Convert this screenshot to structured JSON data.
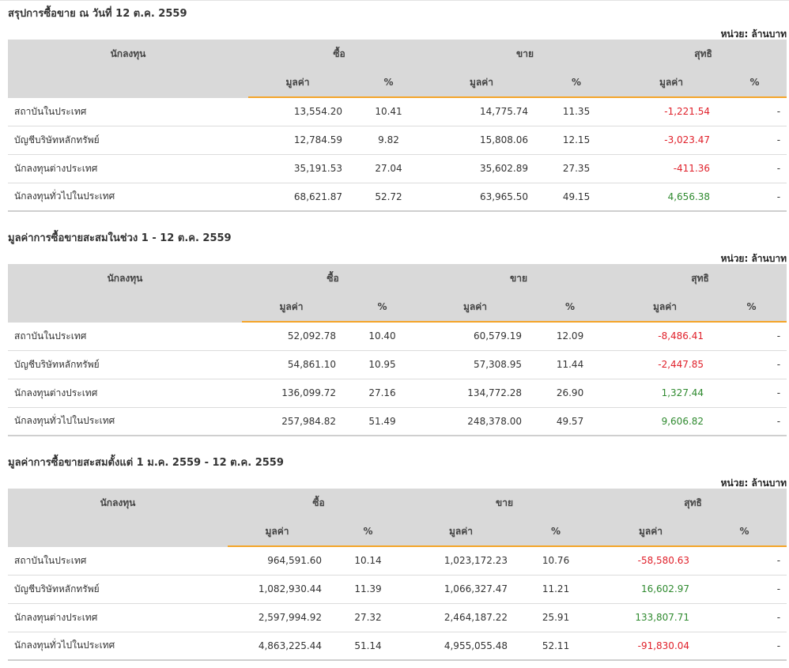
{
  "unit_label": "หน่วย: ล้านบาท",
  "columns": {
    "investor": "นักลงทุน",
    "buy": "ซื้อ",
    "sell": "ขาย",
    "net": "สุทธิ",
    "value": "มูลค่า",
    "percent": "%"
  },
  "sections": [
    {
      "title": "สรุปการซื้อขาย ณ วันที่ 12 ต.ค. 2559",
      "rows": [
        {
          "investor": "สถาบันในประเทศ",
          "buy_value": "13,554.20",
          "buy_pct": "10.41",
          "sell_value": "14,775.74",
          "sell_pct": "11.35",
          "net_value": "-1,221.54",
          "net_sign": "neg",
          "net_pct": "-"
        },
        {
          "investor": "บัญชีบริษัทหลักทรัพย์",
          "buy_value": "12,784.59",
          "buy_pct": "9.82",
          "sell_value": "15,808.06",
          "sell_pct": "12.15",
          "net_value": "-3,023.47",
          "net_sign": "neg",
          "net_pct": "-"
        },
        {
          "investor": "นักลงทุนต่างประเทศ",
          "buy_value": "35,191.53",
          "buy_pct": "27.04",
          "sell_value": "35,602.89",
          "sell_pct": "27.35",
          "net_value": "-411.36",
          "net_sign": "neg",
          "net_pct": "-"
        },
        {
          "investor": "นักลงทุนทั่วไปในประเทศ",
          "buy_value": "68,621.87",
          "buy_pct": "52.72",
          "sell_value": "63,965.50",
          "sell_pct": "49.15",
          "net_value": "4,656.38",
          "net_sign": "pos",
          "net_pct": "-"
        }
      ]
    },
    {
      "title": "มูลค่าการซื้อขายสะสมในช่วง 1 - 12 ต.ค. 2559",
      "rows": [
        {
          "investor": "สถาบันในประเทศ",
          "buy_value": "52,092.78",
          "buy_pct": "10.40",
          "sell_value": "60,579.19",
          "sell_pct": "12.09",
          "net_value": "-8,486.41",
          "net_sign": "neg",
          "net_pct": "-"
        },
        {
          "investor": "บัญชีบริษัทหลักทรัพย์",
          "buy_value": "54,861.10",
          "buy_pct": "10.95",
          "sell_value": "57,308.95",
          "sell_pct": "11.44",
          "net_value": "-2,447.85",
          "net_sign": "neg",
          "net_pct": "-"
        },
        {
          "investor": "นักลงทุนต่างประเทศ",
          "buy_value": "136,099.72",
          "buy_pct": "27.16",
          "sell_value": "134,772.28",
          "sell_pct": "26.90",
          "net_value": "1,327.44",
          "net_sign": "pos",
          "net_pct": "-"
        },
        {
          "investor": "นักลงทุนทั่วไปในประเทศ",
          "buy_value": "257,984.82",
          "buy_pct": "51.49",
          "sell_value": "248,378.00",
          "sell_pct": "49.57",
          "net_value": "9,606.82",
          "net_sign": "pos",
          "net_pct": "-"
        }
      ]
    },
    {
      "title": "มูลค่าการซื้อขายสะสมตั้งแต่ 1 ม.ค. 2559 - 12 ต.ค. 2559",
      "rows": [
        {
          "investor": "สถาบันในประเทศ",
          "buy_value": "964,591.60",
          "buy_pct": "10.14",
          "sell_value": "1,023,172.23",
          "sell_pct": "10.76",
          "net_value": "-58,580.63",
          "net_sign": "neg",
          "net_pct": "-"
        },
        {
          "investor": "บัญชีบริษัทหลักทรัพย์",
          "buy_value": "1,082,930.44",
          "buy_pct": "11.39",
          "sell_value": "1,066,327.47",
          "sell_pct": "11.21",
          "net_value": "16,602.97",
          "net_sign": "pos",
          "net_pct": "-"
        },
        {
          "investor": "นักลงทุนต่างประเทศ",
          "buy_value": "2,597,994.92",
          "buy_pct": "27.32",
          "sell_value": "2,464,187.22",
          "sell_pct": "25.91",
          "net_value": "133,807.71",
          "net_sign": "pos",
          "net_pct": "-"
        },
        {
          "investor": "นักลงทุนทั่วไปในประเทศ",
          "buy_value": "4,863,225.44",
          "buy_pct": "51.14",
          "sell_value": "4,955,055.48",
          "sell_pct": "52.11",
          "net_value": "-91,830.04",
          "net_sign": "neg",
          "net_pct": "-"
        }
      ]
    }
  ],
  "colors": {
    "header_bg": "#d9d9d9",
    "accent_underline": "#f4a52a",
    "negative": "#e0202a",
    "positive": "#2f8a2f"
  }
}
